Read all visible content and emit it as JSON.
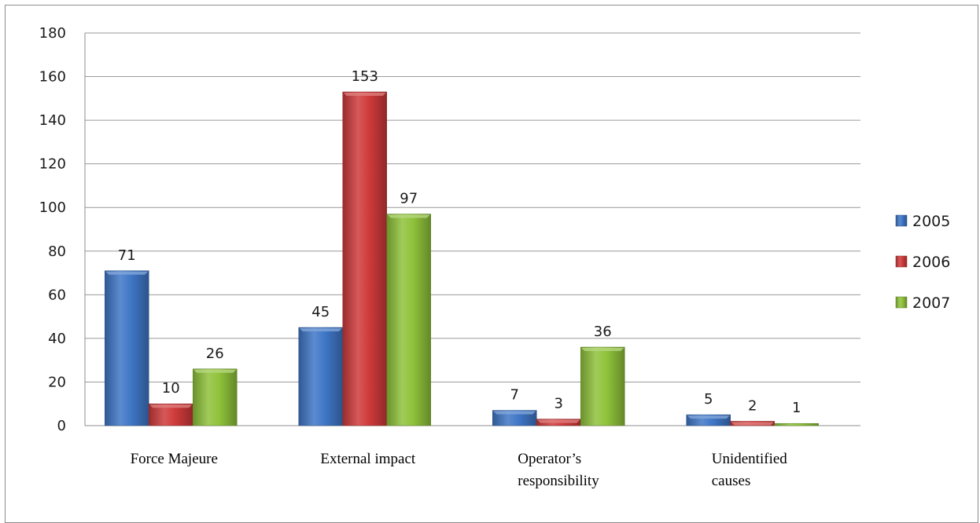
{
  "chart_data": {
    "type": "bar",
    "categories": [
      [
        "Force Majeure"
      ],
      [
        "External impact"
      ],
      [
        "Operator’s",
        "responsibility"
      ],
      [
        "Unidentified",
        "causes"
      ]
    ],
    "series": [
      {
        "name": "2005",
        "values": [
          71,
          45,
          7,
          5
        ],
        "color": "#3f76c6"
      },
      {
        "name": "2006",
        "values": [
          10,
          153,
          3,
          2
        ],
        "color": "#cf3a3a"
      },
      {
        "name": "2007",
        "values": [
          26,
          97,
          36,
          1
        ],
        "color": "#8fc23a"
      }
    ],
    "ylim": [
      0,
      180
    ],
    "yticks": [
      0,
      20,
      40,
      60,
      80,
      100,
      120,
      140,
      160,
      180
    ],
    "grid": true,
    "legend_position": "right",
    "title": "",
    "xlabel": "",
    "ylabel": ""
  }
}
